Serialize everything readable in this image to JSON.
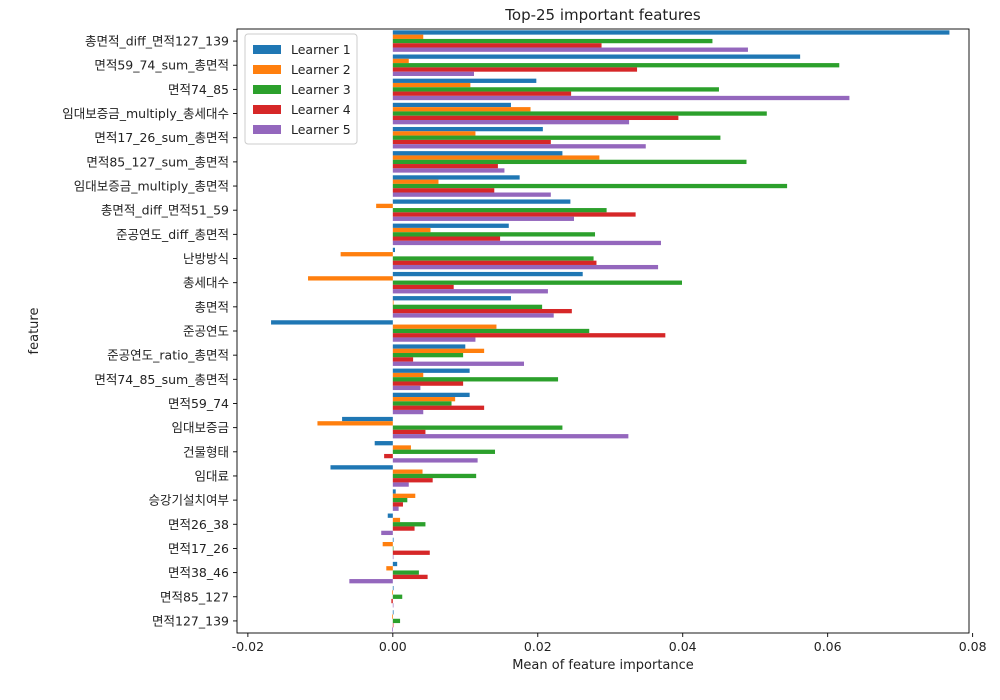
{
  "chart_data": {
    "type": "bar",
    "orientation": "horizontal",
    "title": "Top-25 important features",
    "xlabel": "Mean of feature importance",
    "ylabel": "feature",
    "xlim": [
      -0.0215,
      0.0795
    ],
    "xticks": [
      -0.02,
      0.0,
      0.02,
      0.04,
      0.06,
      0.08
    ],
    "xtick_labels": [
      "-0.02",
      "0.00",
      "0.02",
      "0.04",
      "0.06",
      "0.08"
    ],
    "grid": false,
    "legend_position": "top-left",
    "categories": [
      "총면적_diff_면적127_139",
      "면적59_74_sum_총면적",
      "면적74_85",
      "임대보증금_multiply_총세대수",
      "면적17_26_sum_총면적",
      "면적85_127_sum_총면적",
      "임대보증금_multiply_총면적",
      "총면적_diff_면적51_59",
      "준공연도_diff_총면적",
      "난방방식",
      "총세대수",
      "총면적",
      "준공연도",
      "준공연도_ratio_총면적",
      "면적74_85_sum_총면적",
      "면적59_74",
      "임대보증금",
      "건물형태",
      "임대료",
      "승강기설치여부",
      "면적26_38",
      "면적17_26",
      "면적38_46",
      "면적85_127",
      "면적127_139"
    ],
    "series": [
      {
        "name": "Learner 1",
        "color": "#1f77b4",
        "values": [
          0.0768,
          0.0562,
          0.0198,
          0.0163,
          0.0207,
          0.0234,
          0.0175,
          0.0245,
          0.016,
          0.0003,
          0.0262,
          0.0163,
          -0.0168,
          0.01,
          0.0106,
          0.0106,
          -0.007,
          -0.0025,
          -0.0086,
          0.0004,
          -0.0007,
          0.0001,
          0.0006,
          0.0001,
          0.0001
        ]
      },
      {
        "name": "Learner 2",
        "color": "#ff7f0e",
        "values": [
          0.0042,
          0.0022,
          0.0107,
          0.019,
          0.0114,
          0.0285,
          0.0063,
          -0.0023,
          0.0052,
          -0.0072,
          -0.0117,
          0.0001,
          0.0143,
          0.0126,
          0.0042,
          0.0086,
          -0.0104,
          0.0025,
          0.0041,
          0.0031,
          0.001,
          -0.0014,
          -0.0009,
          -0.0001,
          -0.0001
        ]
      },
      {
        "name": "Learner 3",
        "color": "#2ca02c",
        "values": [
          0.0441,
          0.0616,
          0.045,
          0.0516,
          0.0452,
          0.0488,
          0.0544,
          0.0295,
          0.0279,
          0.0277,
          0.0399,
          0.0206,
          0.0271,
          0.0097,
          0.0228,
          0.0081,
          0.0234,
          0.0141,
          0.0115,
          0.002,
          0.0045,
          0.0,
          0.0036,
          0.0013,
          0.001
        ]
      },
      {
        "name": "Learner 4",
        "color": "#d62728",
        "values": [
          0.0288,
          0.0337,
          0.0246,
          0.0394,
          0.0218,
          0.0145,
          0.014,
          0.0335,
          0.0148,
          0.0281,
          0.0084,
          0.0247,
          0.0376,
          0.0028,
          0.0097,
          0.0126,
          0.0045,
          -0.0012,
          0.0055,
          0.0014,
          0.003,
          0.0051,
          0.0048,
          -0.0002,
          0.0
        ]
      },
      {
        "name": "Learner 5",
        "color": "#9467bd",
        "values": [
          0.049,
          0.0112,
          0.063,
          0.0326,
          0.0349,
          0.0154,
          0.0218,
          0.025,
          0.037,
          0.0366,
          0.0214,
          0.0222,
          0.0114,
          0.0181,
          0.0038,
          0.0042,
          0.0325,
          0.0117,
          0.0022,
          0.0008,
          -0.0016,
          0.0,
          -0.006,
          0.0,
          -0.0001
        ]
      }
    ]
  }
}
